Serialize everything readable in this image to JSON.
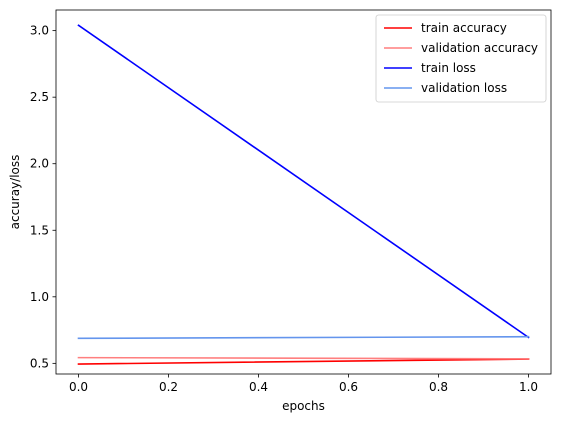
{
  "chart_data": {
    "type": "line",
    "title": "",
    "xlabel": "epochs",
    "ylabel": "accuray/loss",
    "x": [
      0,
      1
    ],
    "xlim": [
      -0.05,
      1.05
    ],
    "ylim": [
      0.42,
      3.155
    ],
    "xticks": [
      0.0,
      0.2,
      0.4,
      0.6,
      0.8,
      1.0
    ],
    "xtick_labels": [
      "0.0",
      "0.2",
      "0.4",
      "0.6",
      "0.8",
      "1.0"
    ],
    "yticks": [
      0.5,
      1.0,
      1.5,
      2.0,
      2.5,
      3.0
    ],
    "ytick_labels": [
      "0.5",
      "1.0",
      "1.5",
      "2.0",
      "2.5",
      "3.0"
    ],
    "grid": false,
    "legend_position": "top-right",
    "series": [
      {
        "name": "train accuracy",
        "color": "#ff0000",
        "values": [
          0.495,
          0.532
        ]
      },
      {
        "name": "validation accuracy",
        "color": "#ff7f7f",
        "values": [
          0.543,
          0.534
        ]
      },
      {
        "name": "train loss",
        "color": "#0000ff",
        "values": [
          3.04,
          0.695
        ]
      },
      {
        "name": "validation loss",
        "color": "#6495ed",
        "values": [
          0.688,
          0.7
        ]
      }
    ]
  }
}
